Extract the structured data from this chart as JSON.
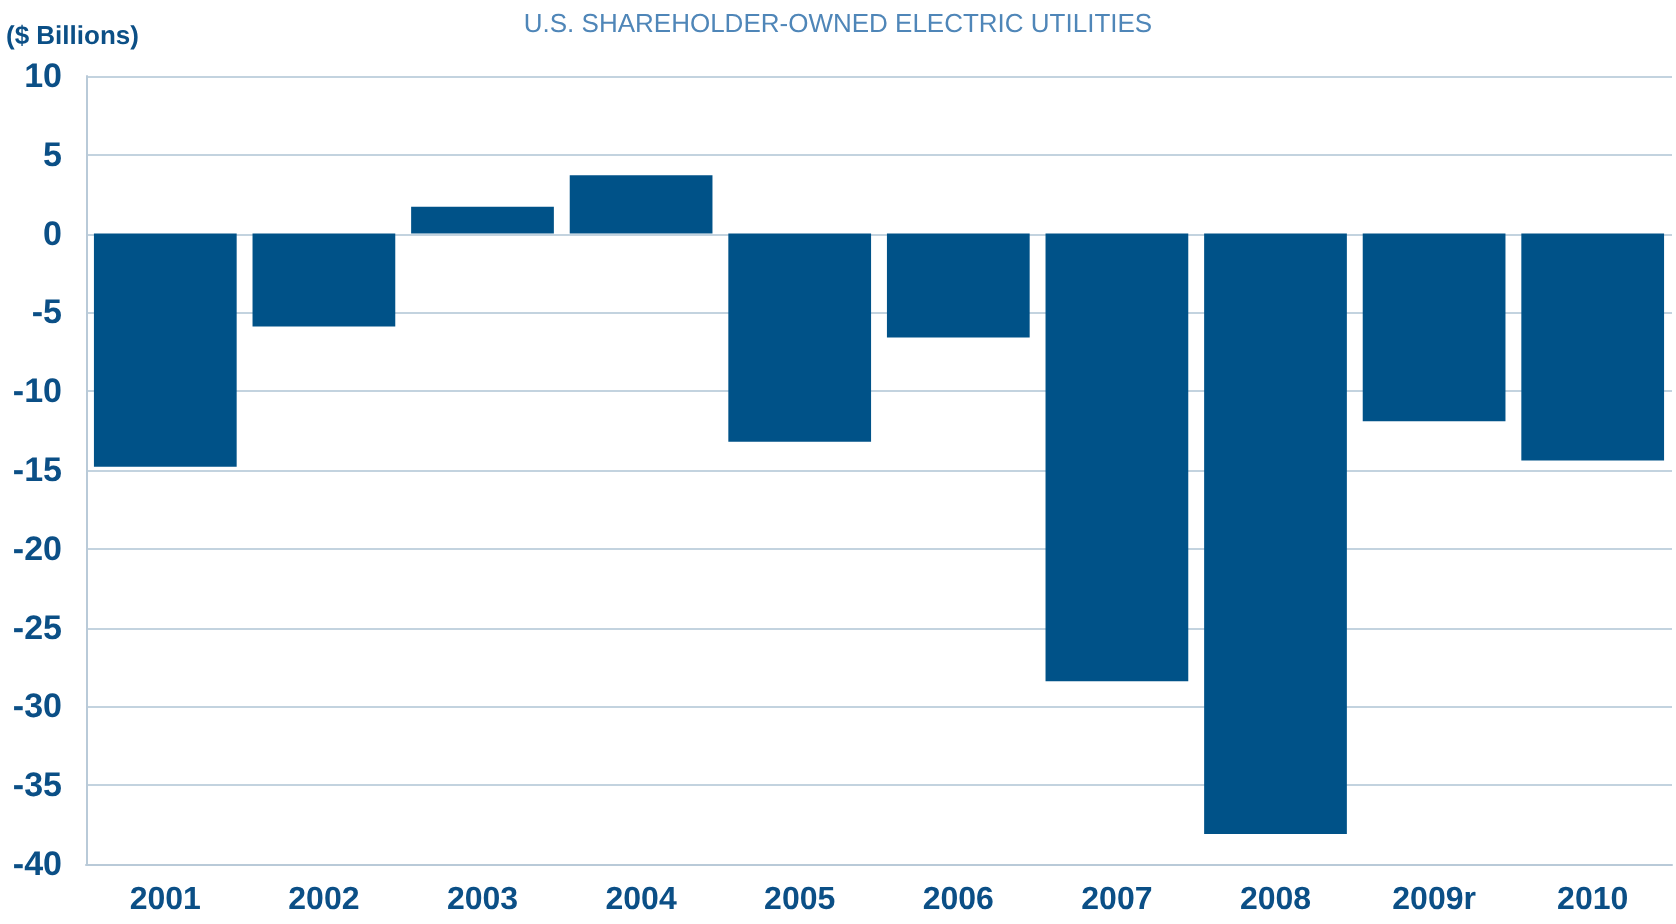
{
  "chart_data": {
    "type": "bar",
    "title": "U.S. SHAREHOLDER-OWNED ELECTRIC UTILITIES",
    "ylabel": "($ Billions)",
    "categories": [
      "2001",
      "2002",
      "2003",
      "2004",
      "2005",
      "2006",
      "2007",
      "2008",
      "2009r",
      "2010"
    ],
    "values": [
      -14.8,
      -5.9,
      1.7,
      3.7,
      -13.2,
      -6.6,
      -28.4,
      -38.1,
      -11.9,
      -14.4
    ],
    "color": "#005288",
    "ylim": [
      -40,
      10
    ],
    "yticks": [
      -40,
      -35,
      -30,
      -25,
      -20,
      -15,
      -10,
      -5,
      0,
      5,
      10
    ],
    "grid": "y"
  }
}
